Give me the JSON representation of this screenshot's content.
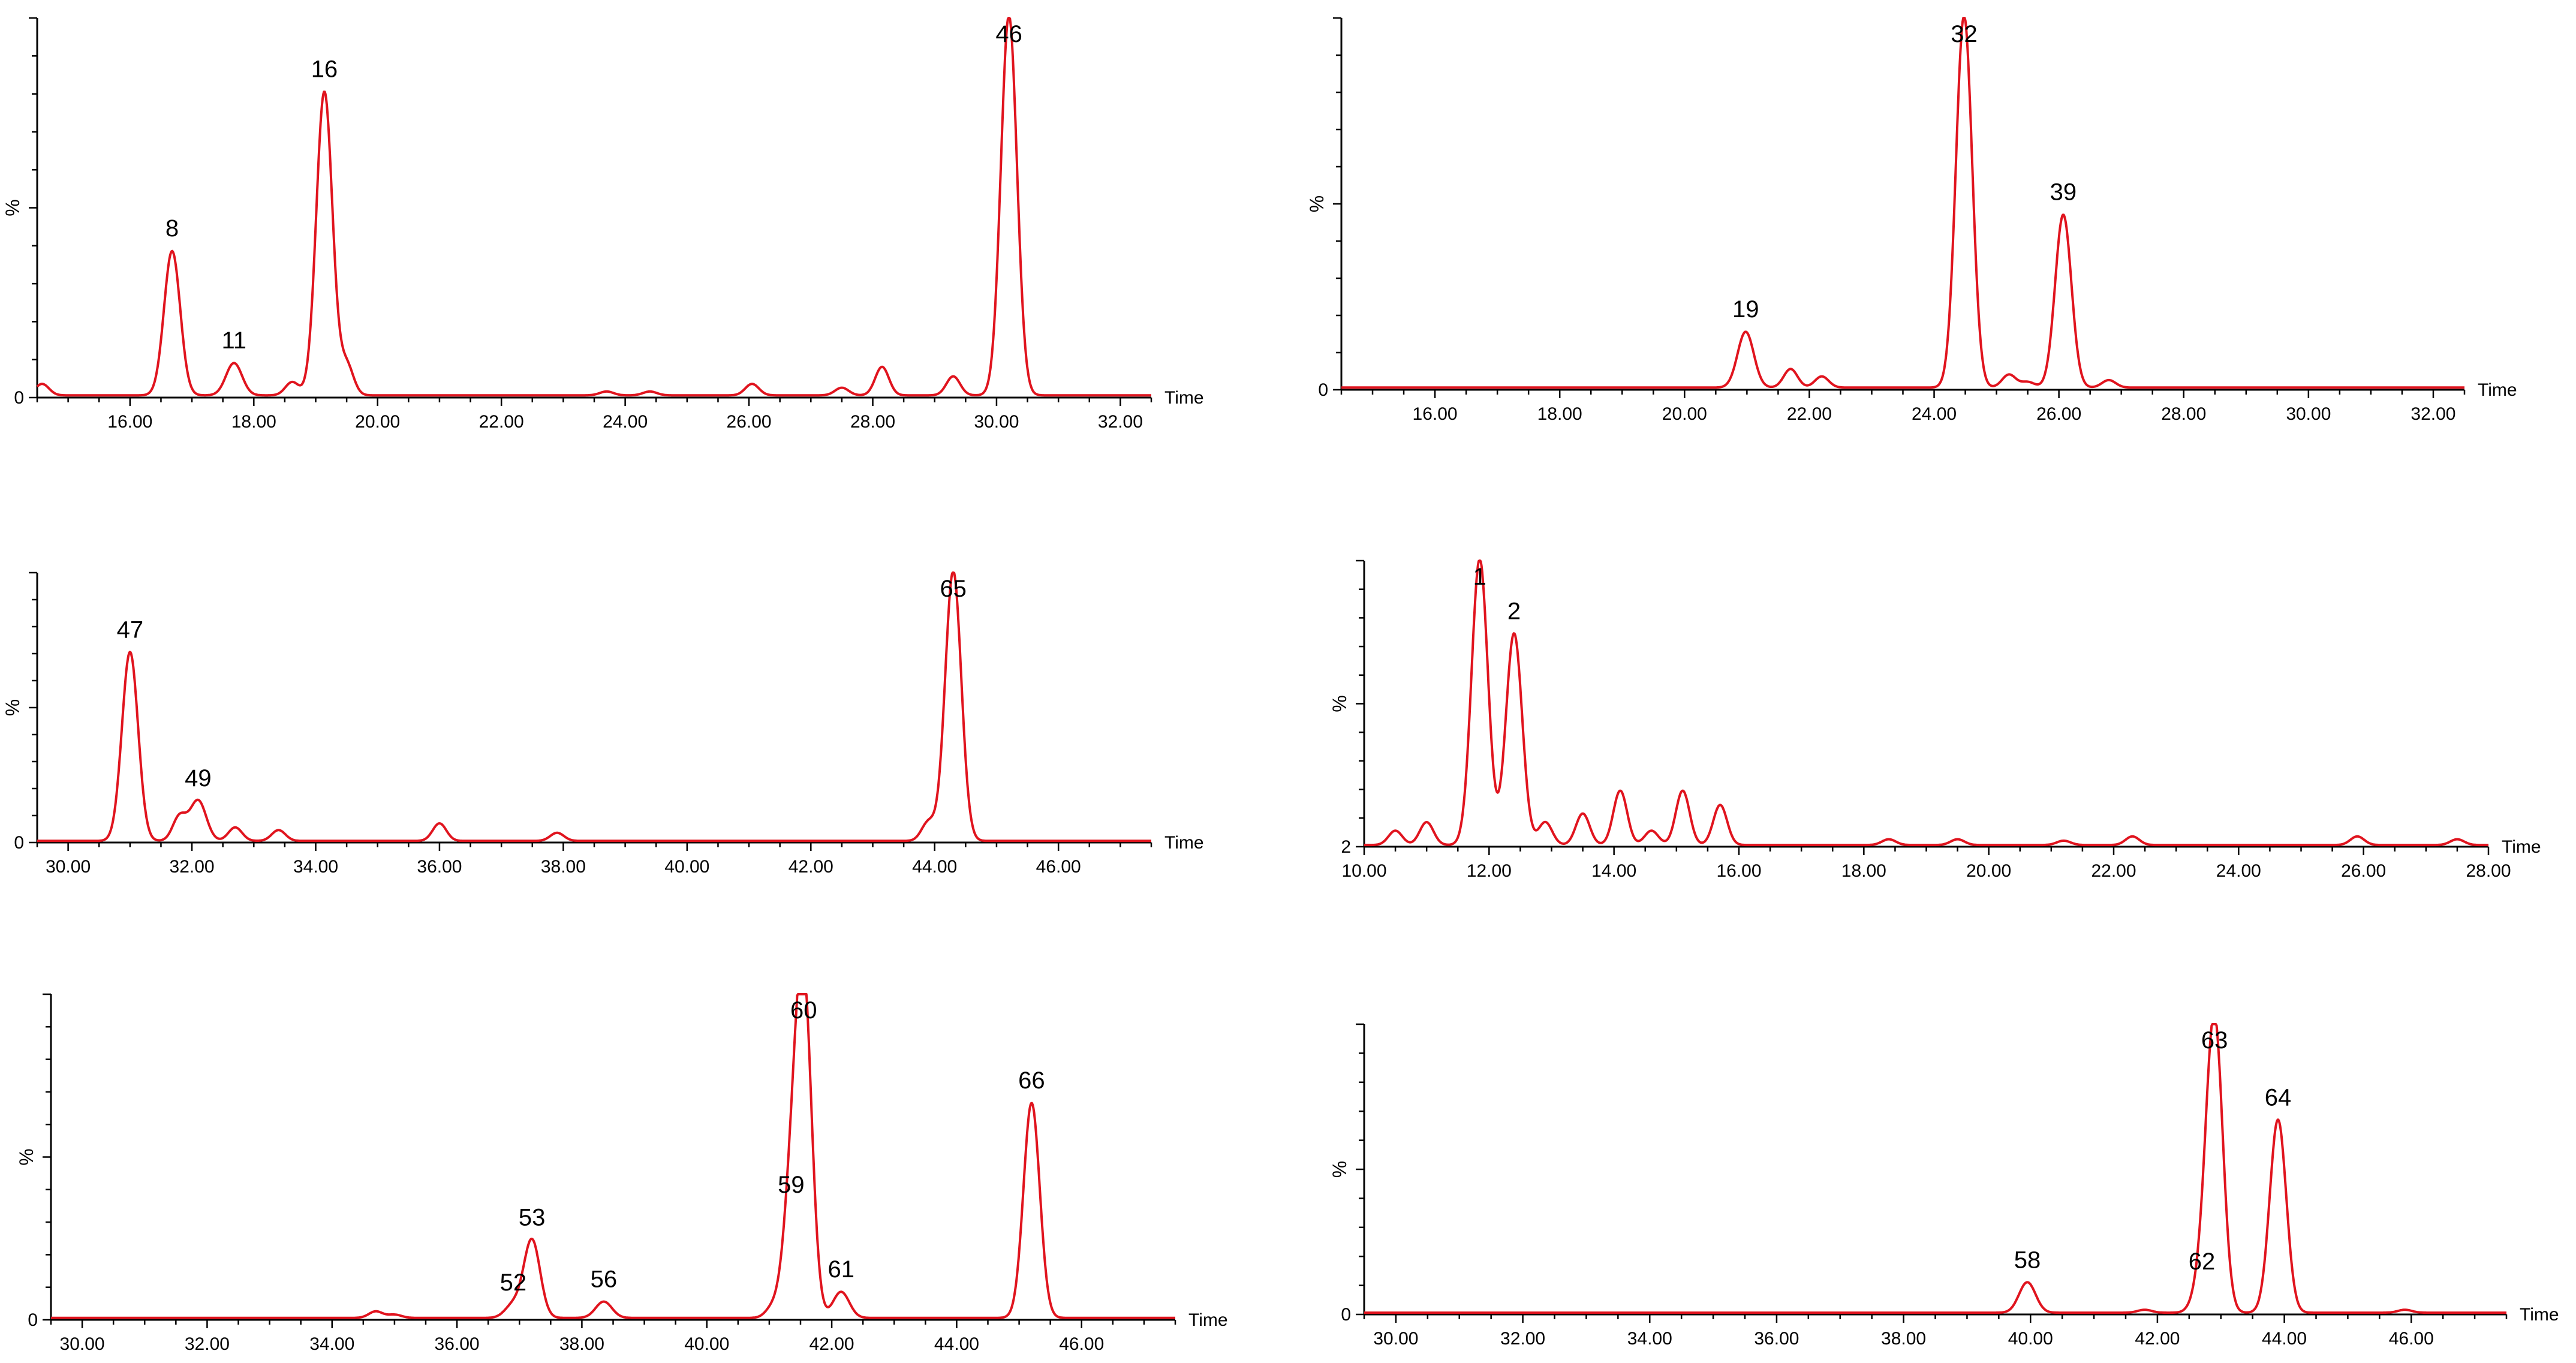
{
  "chart_data": [
    {
      "type": "line",
      "color": "#e0141e",
      "xlabel": "Time",
      "ylabel": "%",
      "xlim": [
        14.5,
        32.5
      ],
      "x_ticks": [
        "16.00",
        "18.00",
        "20.00",
        "22.00",
        "24.00",
        "26.00",
        "28.00",
        "30.00",
        "32.00"
      ],
      "y_ticks": [
        "0"
      ],
      "peaks": [
        {
          "label": "8",
          "x": 16.68,
          "y": 38
        },
        {
          "label": "11",
          "x": 17.68,
          "y": 8.5
        },
        {
          "label": "16",
          "x": 19.14,
          "y": 80
        },
        {
          "label": "46",
          "x": 30.2,
          "y": 100
        }
      ],
      "minor_peaks": [
        {
          "x": 14.58,
          "y": 3
        },
        {
          "x": 18.62,
          "y": 3.5
        },
        {
          "x": 19.5,
          "y": 8
        },
        {
          "x": 23.7,
          "y": 1
        },
        {
          "x": 24.4,
          "y": 1
        },
        {
          "x": 26.05,
          "y": 3
        },
        {
          "x": 27.5,
          "y": 2
        },
        {
          "x": 28.15,
          "y": 7.5
        },
        {
          "x": 29.3,
          "y": 5
        }
      ]
    },
    {
      "type": "line",
      "color": "#e0141e",
      "xlabel": "Time",
      "ylabel": "%",
      "xlim": [
        14.5,
        32.5
      ],
      "x_ticks": [
        "16.00",
        "18.00",
        "20.00",
        "22.00",
        "24.00",
        "26.00",
        "28.00",
        "30.00",
        "32.00"
      ],
      "y_ticks": [
        "0"
      ],
      "peaks": [
        {
          "label": "19",
          "x": 20.98,
          "y": 15
        },
        {
          "label": "32",
          "x": 24.48,
          "y": 100
        },
        {
          "label": "39",
          "x": 26.07,
          "y": 46.5
        }
      ],
      "minor_peaks": [
        {
          "x": 21.7,
          "y": 5
        },
        {
          "x": 22.2,
          "y": 3
        },
        {
          "x": 25.2,
          "y": 3.5
        },
        {
          "x": 25.5,
          "y": 1.5
        },
        {
          "x": 26.8,
          "y": 2
        }
      ]
    },
    {
      "type": "line",
      "color": "#e0141e",
      "xlabel": "Time",
      "ylabel": "%",
      "xlim": [
        29.5,
        47.5
      ],
      "x_ticks": [
        "30.00",
        "32.00",
        "34.00",
        "36.00",
        "38.00",
        "40.00",
        "42.00",
        "44.00",
        "46.00"
      ],
      "y_ticks": [
        "0"
      ],
      "peaks": [
        {
          "label": "47",
          "x": 31.0,
          "y": 70
        },
        {
          "label": "49",
          "x": 32.1,
          "y": 15
        },
        {
          "label": "65",
          "x": 44.3,
          "y": 100
        }
      ],
      "minor_peaks": [
        {
          "x": 31.8,
          "y": 9
        },
        {
          "x": 32.7,
          "y": 5
        },
        {
          "x": 33.4,
          "y": 4
        },
        {
          "x": 36.0,
          "y": 6.5
        },
        {
          "x": 37.9,
          "y": 3
        },
        {
          "x": 43.9,
          "y": 7
        }
      ]
    },
    {
      "type": "line",
      "color": "#e0141e",
      "xlabel": "Time",
      "ylabel": "%",
      "xlim": [
        10.0,
        28.0
      ],
      "x_ticks": [
        "10.00",
        "12.00",
        "14.00",
        "16.00",
        "18.00",
        "20.00",
        "22.00",
        "24.00",
        "26.00",
        "28.00"
      ],
      "y_ticks": [
        "2"
      ],
      "peaks": [
        {
          "label": "1",
          "x": 11.85,
          "y": 100
        },
        {
          "label": "2",
          "x": 12.4,
          "y": 74
        }
      ],
      "minor_peaks": [
        {
          "x": 10.5,
          "y": 5
        },
        {
          "x": 11.0,
          "y": 8
        },
        {
          "x": 12.9,
          "y": 8
        },
        {
          "x": 13.5,
          "y": 11
        },
        {
          "x": 14.1,
          "y": 19
        },
        {
          "x": 14.6,
          "y": 5
        },
        {
          "x": 15.1,
          "y": 19
        },
        {
          "x": 15.7,
          "y": 14
        },
        {
          "x": 18.4,
          "y": 2
        },
        {
          "x": 19.5,
          "y": 2
        },
        {
          "x": 21.2,
          "y": 1.5
        },
        {
          "x": 22.3,
          "y": 3
        },
        {
          "x": 25.9,
          "y": 3
        },
        {
          "x": 27.5,
          "y": 2
        }
      ]
    },
    {
      "type": "line",
      "color": "#e0141e",
      "xlabel": "Time",
      "ylabel": "%",
      "xlim": [
        29.5,
        47.5
      ],
      "x_ticks": [
        "30.00",
        "32.00",
        "34.00",
        "36.00",
        "38.00",
        "40.00",
        "42.00",
        "44.00",
        "46.00"
      ],
      "y_ticks": [
        "0"
      ],
      "peaks": [
        {
          "label": "52",
          "x": 36.9,
          "y": 4
        },
        {
          "label": "53",
          "x": 37.2,
          "y": 24
        },
        {
          "label": "56",
          "x": 38.35,
          "y": 5
        },
        {
          "label": "59",
          "x": 41.35,
          "y": 34
        },
        {
          "label": "60",
          "x": 41.55,
          "y": 100
        },
        {
          "label": "61",
          "x": 42.15,
          "y": 8
        },
        {
          "label": "66",
          "x": 45.2,
          "y": 66
        }
      ],
      "minor_peaks": [
        {
          "x": 34.7,
          "y": 2
        },
        {
          "x": 35.0,
          "y": 1
        },
        {
          "x": 41.05,
          "y": 3
        }
      ]
    },
    {
      "type": "line",
      "color": "#e0141e",
      "xlabel": "Time",
      "ylabel": "%",
      "xlim": [
        29.5,
        47.5
      ],
      "x_ticks": [
        "30.00",
        "32.00",
        "34.00",
        "36.00",
        "38.00",
        "40.00",
        "42.00",
        "44.00",
        "46.00"
      ],
      "y_ticks": [
        "0"
      ],
      "peaks": [
        {
          "label": "58",
          "x": 39.95,
          "y": 10.5
        },
        {
          "label": "62",
          "x": 42.7,
          "y": 10
        },
        {
          "label": "63",
          "x": 42.9,
          "y": 100
        },
        {
          "label": "64",
          "x": 43.9,
          "y": 66.5
        }
      ],
      "minor_peaks": [
        {
          "x": 41.8,
          "y": 1
        },
        {
          "x": 45.9,
          "y": 1
        }
      ]
    }
  ]
}
